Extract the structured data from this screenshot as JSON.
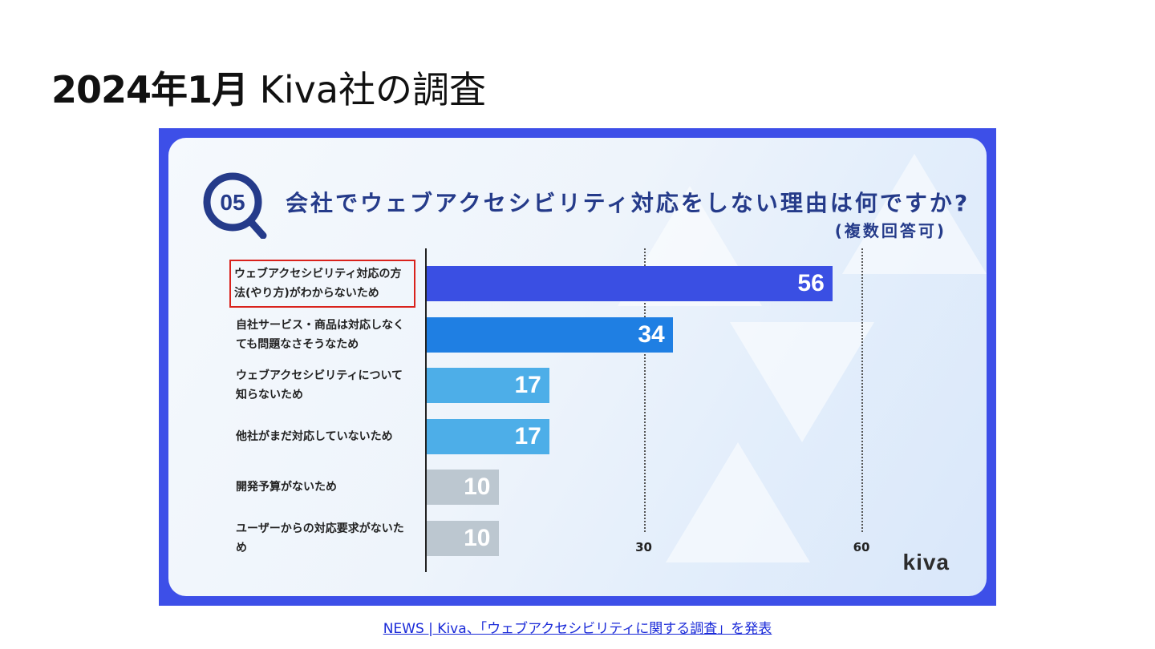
{
  "slide": {
    "title_bold": "2024年1月",
    "title_rest": " Kiva社の調査"
  },
  "chart_data": {
    "type": "bar",
    "orientation": "horizontal",
    "badge": "05",
    "title": "会社でウェブアクセシビリティ対応をしない理由は何ですか?",
    "subtitle": "(複数回答可)",
    "categories": [
      "ウェブアクセシビリティ対応の方法(やり方)がわからないため",
      "自社サービス・商品は対応しなくても問題なさそうなため",
      "ウェブアクセシビリティについて知らないため",
      "他社がまだ対応していないため",
      "開発予算がないため",
      "ユーザーからの対応要求がないため"
    ],
    "values": [
      56,
      34,
      17,
      17,
      10,
      10
    ],
    "bar_colors": [
      "#3a4fe3",
      "#1f7fe3",
      "#4daee8",
      "#4daee8",
      "#bcc7d0",
      "#bcc7d0"
    ],
    "xticks": [
      30,
      60
    ],
    "xlim": [
      0,
      70
    ],
    "highlighted_category_index": 0,
    "highlight_color": "#d9221c",
    "brand": "kiva"
  },
  "source": {
    "link_text": "NEWS | Kiva、「ウェブアクセシビリティに関する調査」を発表"
  }
}
